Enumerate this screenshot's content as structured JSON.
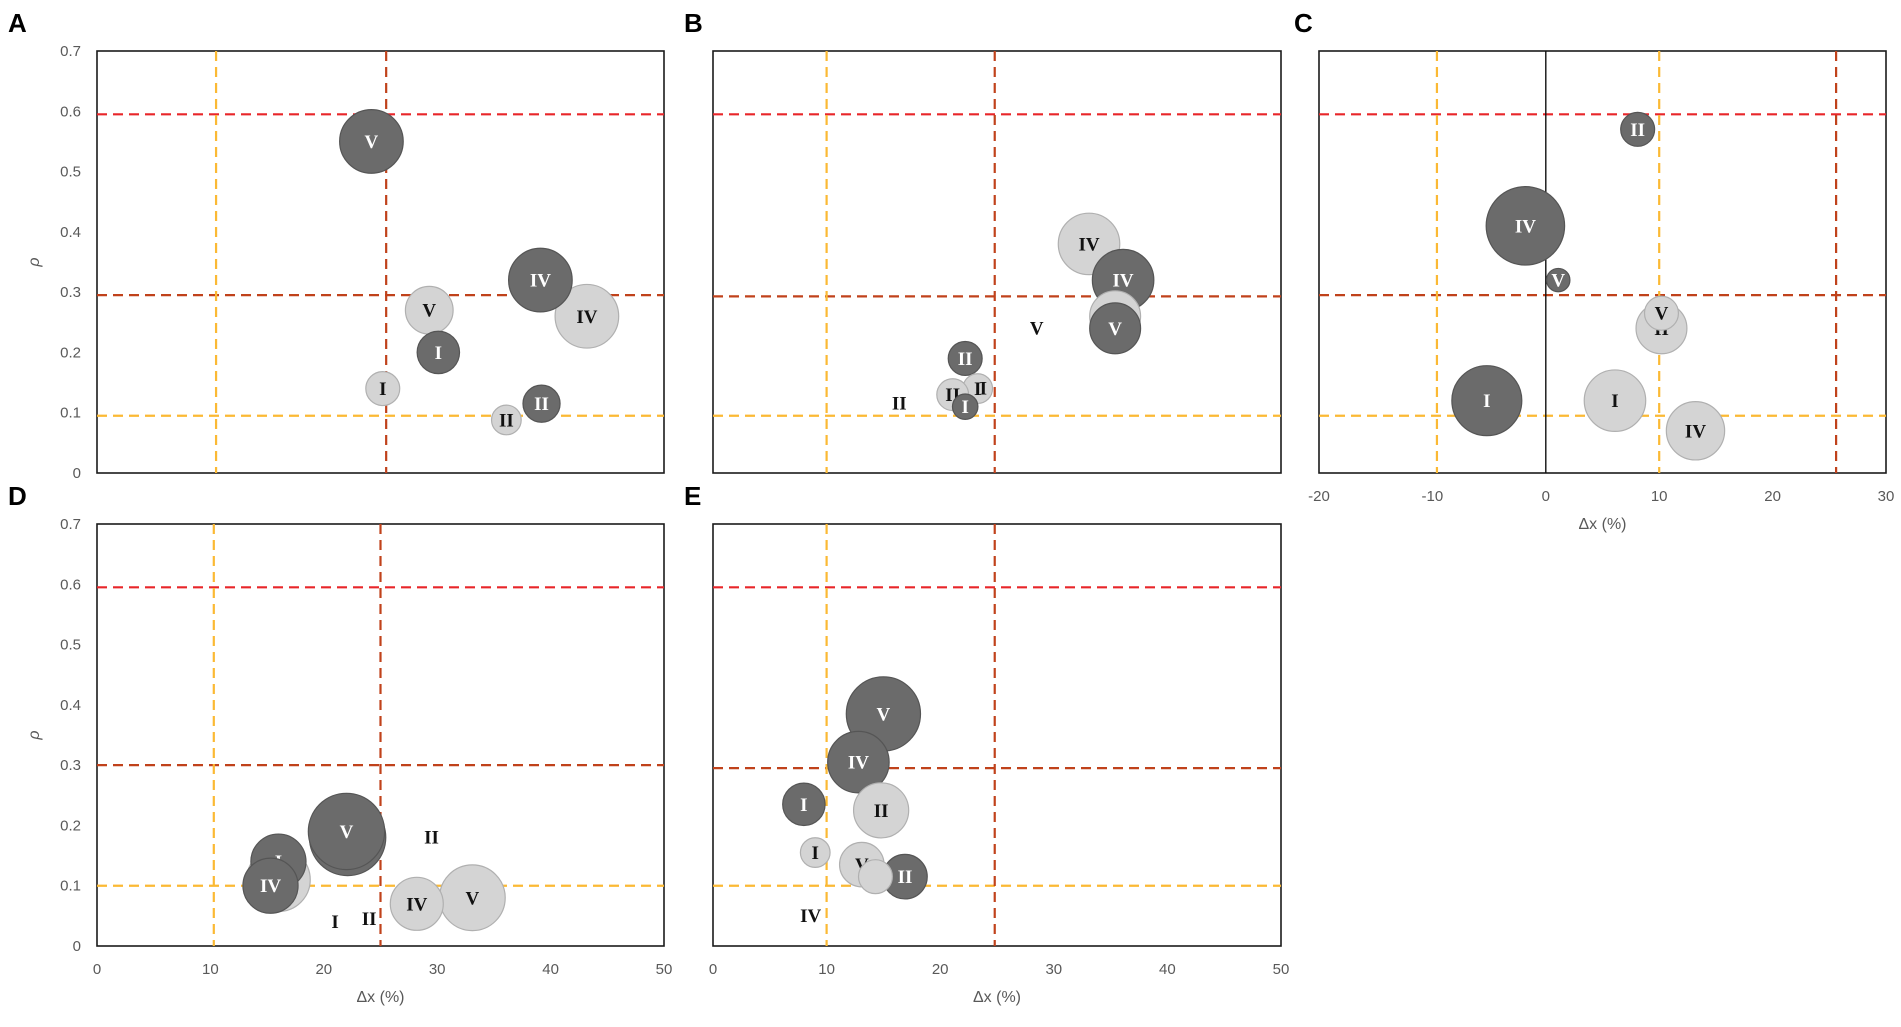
{
  "colors": {
    "dark_bubble": "#6b6b6b",
    "light_bubble": "#d4d4d4",
    "red_line": "#e8262a",
    "brown_line": "#c0421b",
    "yellow_line": "#fbb934"
  },
  "chart_data": [
    {
      "panel": "A",
      "type": "scatter",
      "xlabel": "",
      "ylabel": "ρ",
      "xlim": [
        0,
        50
      ],
      "ylim": [
        0,
        0.7
      ],
      "x_ticks": [],
      "y_ticks": [
        "0",
        "0.1",
        "0.2",
        "0.3",
        "0.4",
        "0.5",
        "0.6",
        "0.7"
      ],
      "reference_lines": {
        "vertical": [
          {
            "x": 10.5,
            "style": "yellow"
          },
          {
            "x": 25.5,
            "style": "brown"
          }
        ],
        "horizontal": [
          {
            "y": 0.595,
            "style": "red"
          },
          {
            "y": 0.295,
            "style": "brown"
          },
          {
            "y": 0.095,
            "style": "yellow"
          }
        ]
      },
      "points": [
        {
          "label": "V",
          "x": 24.2,
          "y": 0.55,
          "size": 6,
          "shade": "dark"
        },
        {
          "label": "V",
          "x": 29.3,
          "y": 0.27,
          "size": 4.5,
          "shade": "light"
        },
        {
          "label": "IV",
          "x": 43.2,
          "y": 0.26,
          "size": 6,
          "shade": "light"
        },
        {
          "label": "IV",
          "x": 39.1,
          "y": 0.32,
          "size": 6,
          "shade": "dark"
        },
        {
          "label": "I",
          "x": 30.1,
          "y": 0.2,
          "size": 4,
          "shade": "dark"
        },
        {
          "label": "I",
          "x": 25.2,
          "y": 0.14,
          "size": 3.2,
          "shade": "light"
        },
        {
          "label": "II",
          "x": 39.2,
          "y": 0.115,
          "size": 3.5,
          "shade": "dark"
        },
        {
          "label": "II",
          "x": 36.1,
          "y": 0.088,
          "size": 2.8,
          "shade": "light"
        }
      ]
    },
    {
      "panel": "B",
      "type": "scatter",
      "xlabel": "",
      "ylabel": "",
      "xlim": [
        0,
        50
      ],
      "ylim": [
        0,
        0.7
      ],
      "x_ticks": [],
      "y_ticks": [],
      "reference_lines": {
        "vertical": [
          {
            "x": 10,
            "style": "yellow"
          },
          {
            "x": 24.8,
            "style": "brown"
          }
        ],
        "horizontal": [
          {
            "y": 0.595,
            "style": "red"
          },
          {
            "y": 0.293,
            "style": "brown"
          },
          {
            "y": 0.095,
            "style": "yellow"
          }
        ]
      },
      "points": [
        {
          "label": "IV",
          "x": 33.1,
          "y": 0.38,
          "size": 5.8,
          "shade": "light"
        },
        {
          "label": "IV",
          "x": 36.1,
          "y": 0.32,
          "size": 5.8,
          "shade": "dark"
        },
        {
          "label": "V",
          "x": 35.4,
          "y": 0.26,
          "size": 4.8,
          "shade": "light"
        },
        {
          "label": "V",
          "x": 35.4,
          "y": 0.24,
          "size": 4.8,
          "shade": "dark"
        },
        {
          "label": "II",
          "x": 22.2,
          "y": 0.19,
          "size": 3.2,
          "shade": "dark"
        },
        {
          "label": "I",
          "x": 23.3,
          "y": 0.14,
          "size": 2.8,
          "shade": "light"
        },
        {
          "label": "II",
          "x": 21.1,
          "y": 0.13,
          "size": 3.0,
          "shade": "light"
        },
        {
          "label": "I",
          "x": 22.2,
          "y": 0.11,
          "size": 2.4,
          "shade": "dark"
        }
      ],
      "callouts": [
        {
          "text": "V",
          "x": 28.5,
          "y": 0.24
        },
        {
          "text": "II",
          "x": 16.4,
          "y": 0.115
        },
        {
          "text": "I",
          "x": 23.8,
          "y": 0.14
        }
      ]
    },
    {
      "panel": "C",
      "type": "scatter",
      "xlabel": "Δx (%)",
      "ylabel": "",
      "xlim": [
        -20,
        30
      ],
      "ylim": [
        0,
        0.7
      ],
      "x_ticks": [
        "-20",
        "-10",
        "0",
        "10",
        "20",
        "30"
      ],
      "y_ticks": [],
      "reference_lines": {
        "vertical": [
          {
            "x": -9.6,
            "style": "yellow"
          },
          {
            "x": 10,
            "style": "yellow"
          },
          {
            "x": 25.6,
            "style": "brown"
          },
          {
            "x": 0,
            "style": "axis"
          }
        ],
        "horizontal": [
          {
            "y": 0.595,
            "style": "red"
          },
          {
            "y": 0.295,
            "style": "brown"
          },
          {
            "y": 0.095,
            "style": "yellow"
          }
        ]
      },
      "points": [
        {
          "label": "II",
          "x": 8.1,
          "y": 0.57,
          "size": 3.2,
          "shade": "dark"
        },
        {
          "label": "IV",
          "x": -1.8,
          "y": 0.41,
          "size": 7.4,
          "shade": "dark"
        },
        {
          "label": "V",
          "x": 1.1,
          "y": 0.32,
          "size": 2.2,
          "shade": "dark"
        },
        {
          "label": "II",
          "x": 10.2,
          "y": 0.24,
          "size": 4.8,
          "shade": "light"
        },
        {
          "label": "V",
          "x": 10.2,
          "y": 0.265,
          "size": 3.2,
          "shade": "light"
        },
        {
          "label": "I",
          "x": -5.2,
          "y": 0.12,
          "size": 6.6,
          "shade": "dark"
        },
        {
          "label": "I",
          "x": 6.1,
          "y": 0.12,
          "size": 5.8,
          "shade": "light"
        },
        {
          "label": "IV",
          "x": 13.2,
          "y": 0.07,
          "size": 5.5,
          "shade": "light"
        }
      ]
    },
    {
      "panel": "D",
      "type": "scatter",
      "xlabel": "Δx (%)",
      "ylabel": "ρ",
      "xlim": [
        0,
        50
      ],
      "ylim": [
        0,
        0.7
      ],
      "x_ticks": [
        "0",
        "10",
        "20",
        "30",
        "40",
        "50"
      ],
      "y_ticks": [
        "0",
        "0.1",
        "0.2",
        "0.3",
        "0.4",
        "0.5",
        "0.6",
        "0.7"
      ],
      "reference_lines": {
        "vertical": [
          {
            "x": 10.3,
            "style": "yellow"
          },
          {
            "x": 25.0,
            "style": "brown"
          }
        ],
        "horizontal": [
          {
            "y": 0.595,
            "style": "red"
          },
          {
            "y": 0.3,
            "style": "brown"
          },
          {
            "y": 0.1,
            "style": "yellow"
          }
        ]
      },
      "points": [
        {
          "label": "V",
          "x": 33.1,
          "y": 0.08,
          "size": 6.2,
          "shade": "light"
        },
        {
          "label": "IV",
          "x": 28.2,
          "y": 0.07,
          "size": 5.0,
          "shade": "light"
        },
        {
          "label": "II",
          "x": 22.1,
          "y": 0.18,
          "size": 7.2,
          "shade": "dark"
        },
        {
          "label": "V",
          "x": 22.0,
          "y": 0.19,
          "size": 7.2,
          "shade": "dark"
        },
        {
          "label": "I",
          "x": 16.0,
          "y": 0.11,
          "size": 6.0,
          "shade": "light"
        },
        {
          "label": "I",
          "x": 16.0,
          "y": 0.14,
          "size": 5.2,
          "shade": "dark"
        },
        {
          "label": "IV",
          "x": 15.3,
          "y": 0.1,
          "size": 5.2,
          "shade": "dark"
        }
      ],
      "callouts": [
        {
          "text": "II",
          "x": 29.5,
          "y": 0.18
        },
        {
          "text": "I",
          "x": 21.0,
          "y": 0.04
        },
        {
          "text": "II",
          "x": 24.0,
          "y": 0.045
        }
      ]
    },
    {
      "panel": "E",
      "type": "scatter",
      "xlabel": "Δx (%)",
      "ylabel": "",
      "xlim": [
        0,
        50
      ],
      "ylim": [
        0,
        0.7
      ],
      "x_ticks": [
        "0",
        "10",
        "20",
        "30",
        "40",
        "50"
      ],
      "y_ticks": [],
      "reference_lines": {
        "vertical": [
          {
            "x": 10,
            "style": "yellow"
          },
          {
            "x": 24.8,
            "style": "brown"
          }
        ],
        "horizontal": [
          {
            "y": 0.595,
            "style": "red"
          },
          {
            "y": 0.295,
            "style": "brown"
          },
          {
            "y": 0.1,
            "style": "yellow"
          }
        ]
      },
      "points": [
        {
          "label": "V",
          "x": 15.0,
          "y": 0.385,
          "size": 7.0,
          "shade": "dark"
        },
        {
          "label": "IV",
          "x": 12.8,
          "y": 0.305,
          "size": 5.8,
          "shade": "dark"
        },
        {
          "label": "II",
          "x": 14.8,
          "y": 0.225,
          "size": 5.2,
          "shade": "light"
        },
        {
          "label": "I",
          "x": 8.0,
          "y": 0.235,
          "size": 4.0,
          "shade": "dark"
        },
        {
          "label": "I",
          "x": 9.0,
          "y": 0.155,
          "size": 2.8,
          "shade": "light"
        },
        {
          "label": "V",
          "x": 13.1,
          "y": 0.135,
          "size": 4.2,
          "shade": "light"
        },
        {
          "label": "II",
          "x": 16.9,
          "y": 0.115,
          "size": 4.2,
          "shade": "dark"
        },
        {
          "label": "",
          "x": 14.3,
          "y": 0.115,
          "size": 3.2,
          "shade": "light"
        }
      ],
      "callouts": [
        {
          "text": "IV",
          "x": 8.6,
          "y": 0.05
        }
      ]
    }
  ]
}
